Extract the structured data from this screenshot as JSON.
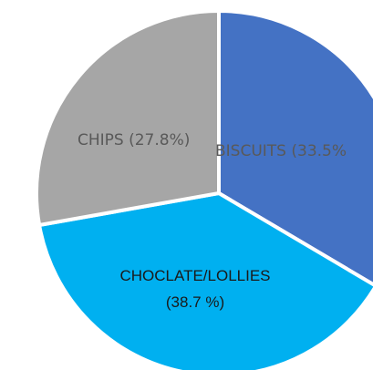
{
  "chart_data": {
    "type": "pie",
    "slices": [
      {
        "label": "BISCUITS (33.5%",
        "name": "BISCUITS",
        "value": 33.5,
        "color": "#4472C4"
      },
      {
        "label": "CHOCLATE/LOLLIES",
        "label_line2": "(38.7 %)",
        "name": "CHOCLATE/LOLLIES",
        "value": 38.7,
        "color": "#00B0F0"
      },
      {
        "label": "CHIPS (27.8%)",
        "name": "CHIPS",
        "value": 27.8,
        "color": "#A6A6A6"
      }
    ],
    "start_angle_deg": -90,
    "direction": "clockwise",
    "border_color": "#ffffff"
  }
}
